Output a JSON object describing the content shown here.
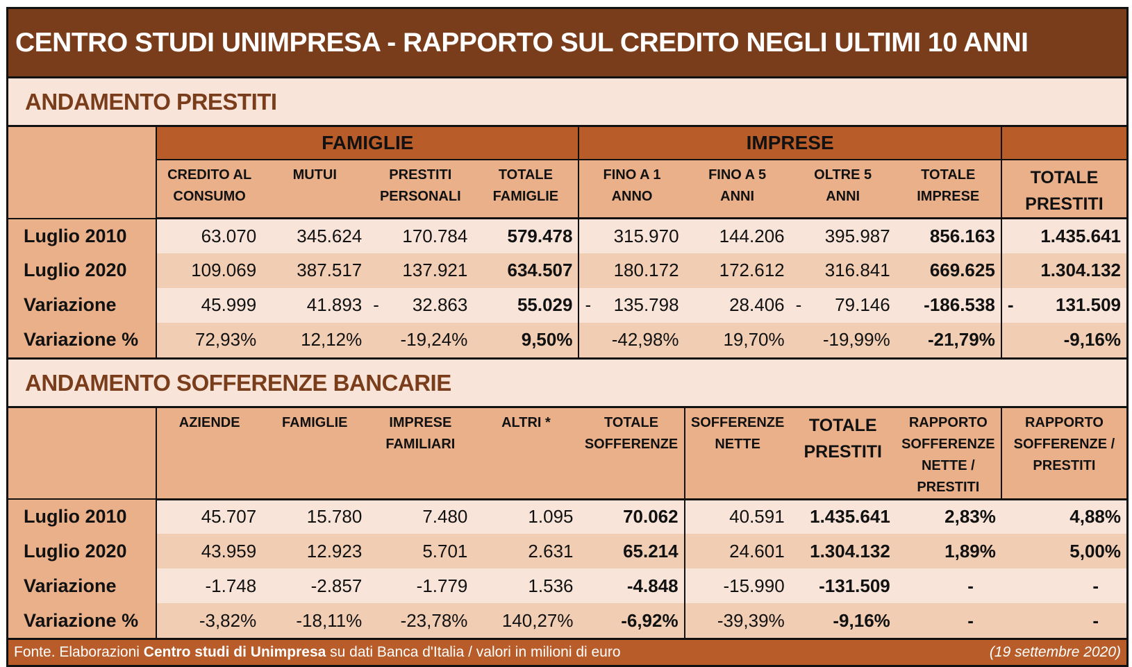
{
  "title": "CENTRO STUDI UNIMPRESA - RAPPORTO SUL CREDITO NEGLI ULTIMI 10 ANNI",
  "prestiti": {
    "heading": "ANDAMENTO PRESTITI",
    "groups": [
      "FAMIGLIE",
      "IMPRESE"
    ],
    "columns": [
      "CREDITO AL CONSUMO",
      "MUTUI",
      "PRESTITI PERSONALI",
      "TOTALE FAMIGLIE",
      "FINO A 1 ANNO",
      "FINO A 5 ANNI",
      "OLTRE 5 ANNI",
      "TOTALE IMPRESE",
      "TOTALE PRESTITI"
    ],
    "rows": [
      {
        "label": "Luglio 2010",
        "cells": [
          "63.070",
          "345.624",
          "170.784",
          "579.478",
          "315.970",
          "144.206",
          "395.987",
          "856.163",
          "1.435.641"
        ]
      },
      {
        "label": "Luglio 2020",
        "cells": [
          "109.069",
          "387.517",
          "137.921",
          "634.507",
          "180.172",
          "172.612",
          "316.841",
          "669.625",
          "1.304.132"
        ]
      },
      {
        "label": "Variazione",
        "cells": [
          "45.999",
          "41.893",
          "- 32.863",
          "55.029",
          "- 135.798",
          "28.406",
          "- 79.146",
          "-186.538",
          "- 131.509"
        ]
      },
      {
        "label": "Variazione %",
        "cells": [
          "72,93%",
          "12,12%",
          "-19,24%",
          "9,50%",
          "-42,98%",
          "19,70%",
          "-19,99%",
          "-21,79%",
          "-9,16%"
        ]
      }
    ]
  },
  "sofferenze": {
    "heading": "ANDAMENTO SOFFERENZE BANCARIE",
    "columns": [
      "AZIENDE",
      "FAMIGLIE",
      "IMPRESE FAMILIARI",
      "ALTRI *",
      "TOTALE SOFFERENZE",
      "SOFFERENZE NETTE",
      "TOTALE PRESTITI",
      "RAPPORTO SOFFERENZE NETTE / PRESTITI",
      "RAPPORTO SOFFERENZE / PRESTITI"
    ],
    "rows": [
      {
        "label": "Luglio 2010",
        "cells": [
          "45.707",
          "15.780",
          "7.480",
          "1.095",
          "70.062",
          "40.591",
          "1.435.641",
          "2,83%",
          "4,88%"
        ]
      },
      {
        "label": "Luglio 2020",
        "cells": [
          "43.959",
          "12.923",
          "5.701",
          "2.631",
          "65.214",
          "24.601",
          "1.304.132",
          "1,89%",
          "5,00%"
        ]
      },
      {
        "label": "Variazione",
        "cells": [
          "-1.748",
          "-2.857",
          "-1.779",
          "1.536",
          "-4.848",
          "-15.990",
          "-131.509",
          "-",
          "-"
        ]
      },
      {
        "label": "Variazione %",
        "cells": [
          "-3,82%",
          "-18,11%",
          "-23,78%",
          "140,27%",
          "-6,92%",
          "-39,39%",
          "-9,16%",
          "-",
          "-"
        ]
      }
    ]
  },
  "footer": {
    "prefix": "Fonte. Elaborazioni ",
    "bold": "Centro studi di Unimpresa",
    "suffix": " su dati Banca d'Italia / valori in milioni di euro",
    "date": "(19 settembre 2020)"
  },
  "colors": {
    "title_bg": "#7a3d1c",
    "group_bg": "#b85c2a",
    "label_bg": "#e9b08a",
    "row_light": "#f8e4d8",
    "row_dark": "#f0cdb3"
  }
}
